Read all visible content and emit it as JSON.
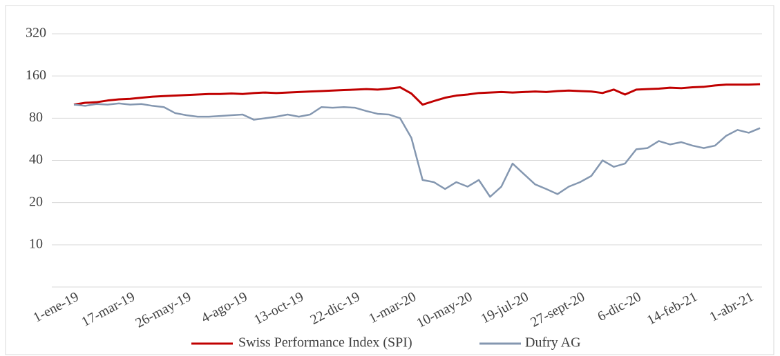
{
  "chart_data": {
    "type": "line",
    "categories": [
      "1-ene-19",
      null,
      null,
      null,
      null,
      "17-mar-19",
      null,
      null,
      null,
      null,
      "26-may-19",
      null,
      null,
      null,
      null,
      "4-ago-19",
      null,
      null,
      null,
      null,
      "13-oct-19",
      null,
      null,
      null,
      null,
      "22-dic-19",
      null,
      null,
      null,
      null,
      "1-mar-20",
      null,
      null,
      null,
      null,
      "10-may-20",
      null,
      null,
      null,
      null,
      "19-jul-20",
      null,
      null,
      null,
      null,
      "27-sept-20",
      null,
      null,
      null,
      null,
      "6-dic-20",
      null,
      null,
      null,
      null,
      "14-feb-21",
      null,
      null,
      null,
      null,
      "1-abr-21",
      null
    ],
    "series": [
      {
        "name": "Swiss Performance Index (SPI)",
        "color": "#c00000",
        "values": [
          100,
          103,
          104,
          107,
          109,
          110,
          112,
          114,
          115,
          116,
          117,
          118,
          119,
          119,
          120,
          119,
          121,
          122,
          121,
          122,
          123,
          124,
          125,
          126,
          127,
          128,
          129,
          128,
          130,
          133,
          120,
          100,
          106,
          112,
          116,
          118,
          121,
          122,
          123,
          122,
          123,
          124,
          123,
          125,
          126,
          125,
          124,
          121,
          128,
          118,
          128,
          129,
          130,
          132,
          131,
          133,
          134,
          137,
          139,
          139,
          139,
          140
        ]
      },
      {
        "name": "Dufry AG",
        "color": "#8497b0",
        "values": [
          100,
          98,
          101,
          100,
          102,
          100,
          101,
          98,
          96,
          87,
          84,
          82,
          82,
          83,
          84,
          85,
          78,
          80,
          82,
          85,
          82,
          85,
          96,
          95,
          96,
          95,
          90,
          86,
          85,
          80,
          58,
          29,
          28,
          25,
          28,
          26,
          29,
          22,
          26,
          38,
          32,
          27,
          25,
          23,
          26,
          28,
          31,
          40,
          36,
          38,
          48,
          49,
          55,
          52,
          54,
          51,
          49,
          51,
          60,
          66,
          63,
          68
        ]
      }
    ],
    "ylim": [
      5,
      320
    ],
    "yticks": [
      10,
      20,
      40,
      80,
      160,
      320
    ],
    "log_scale": true,
    "grid": true,
    "legend": "bottom"
  }
}
